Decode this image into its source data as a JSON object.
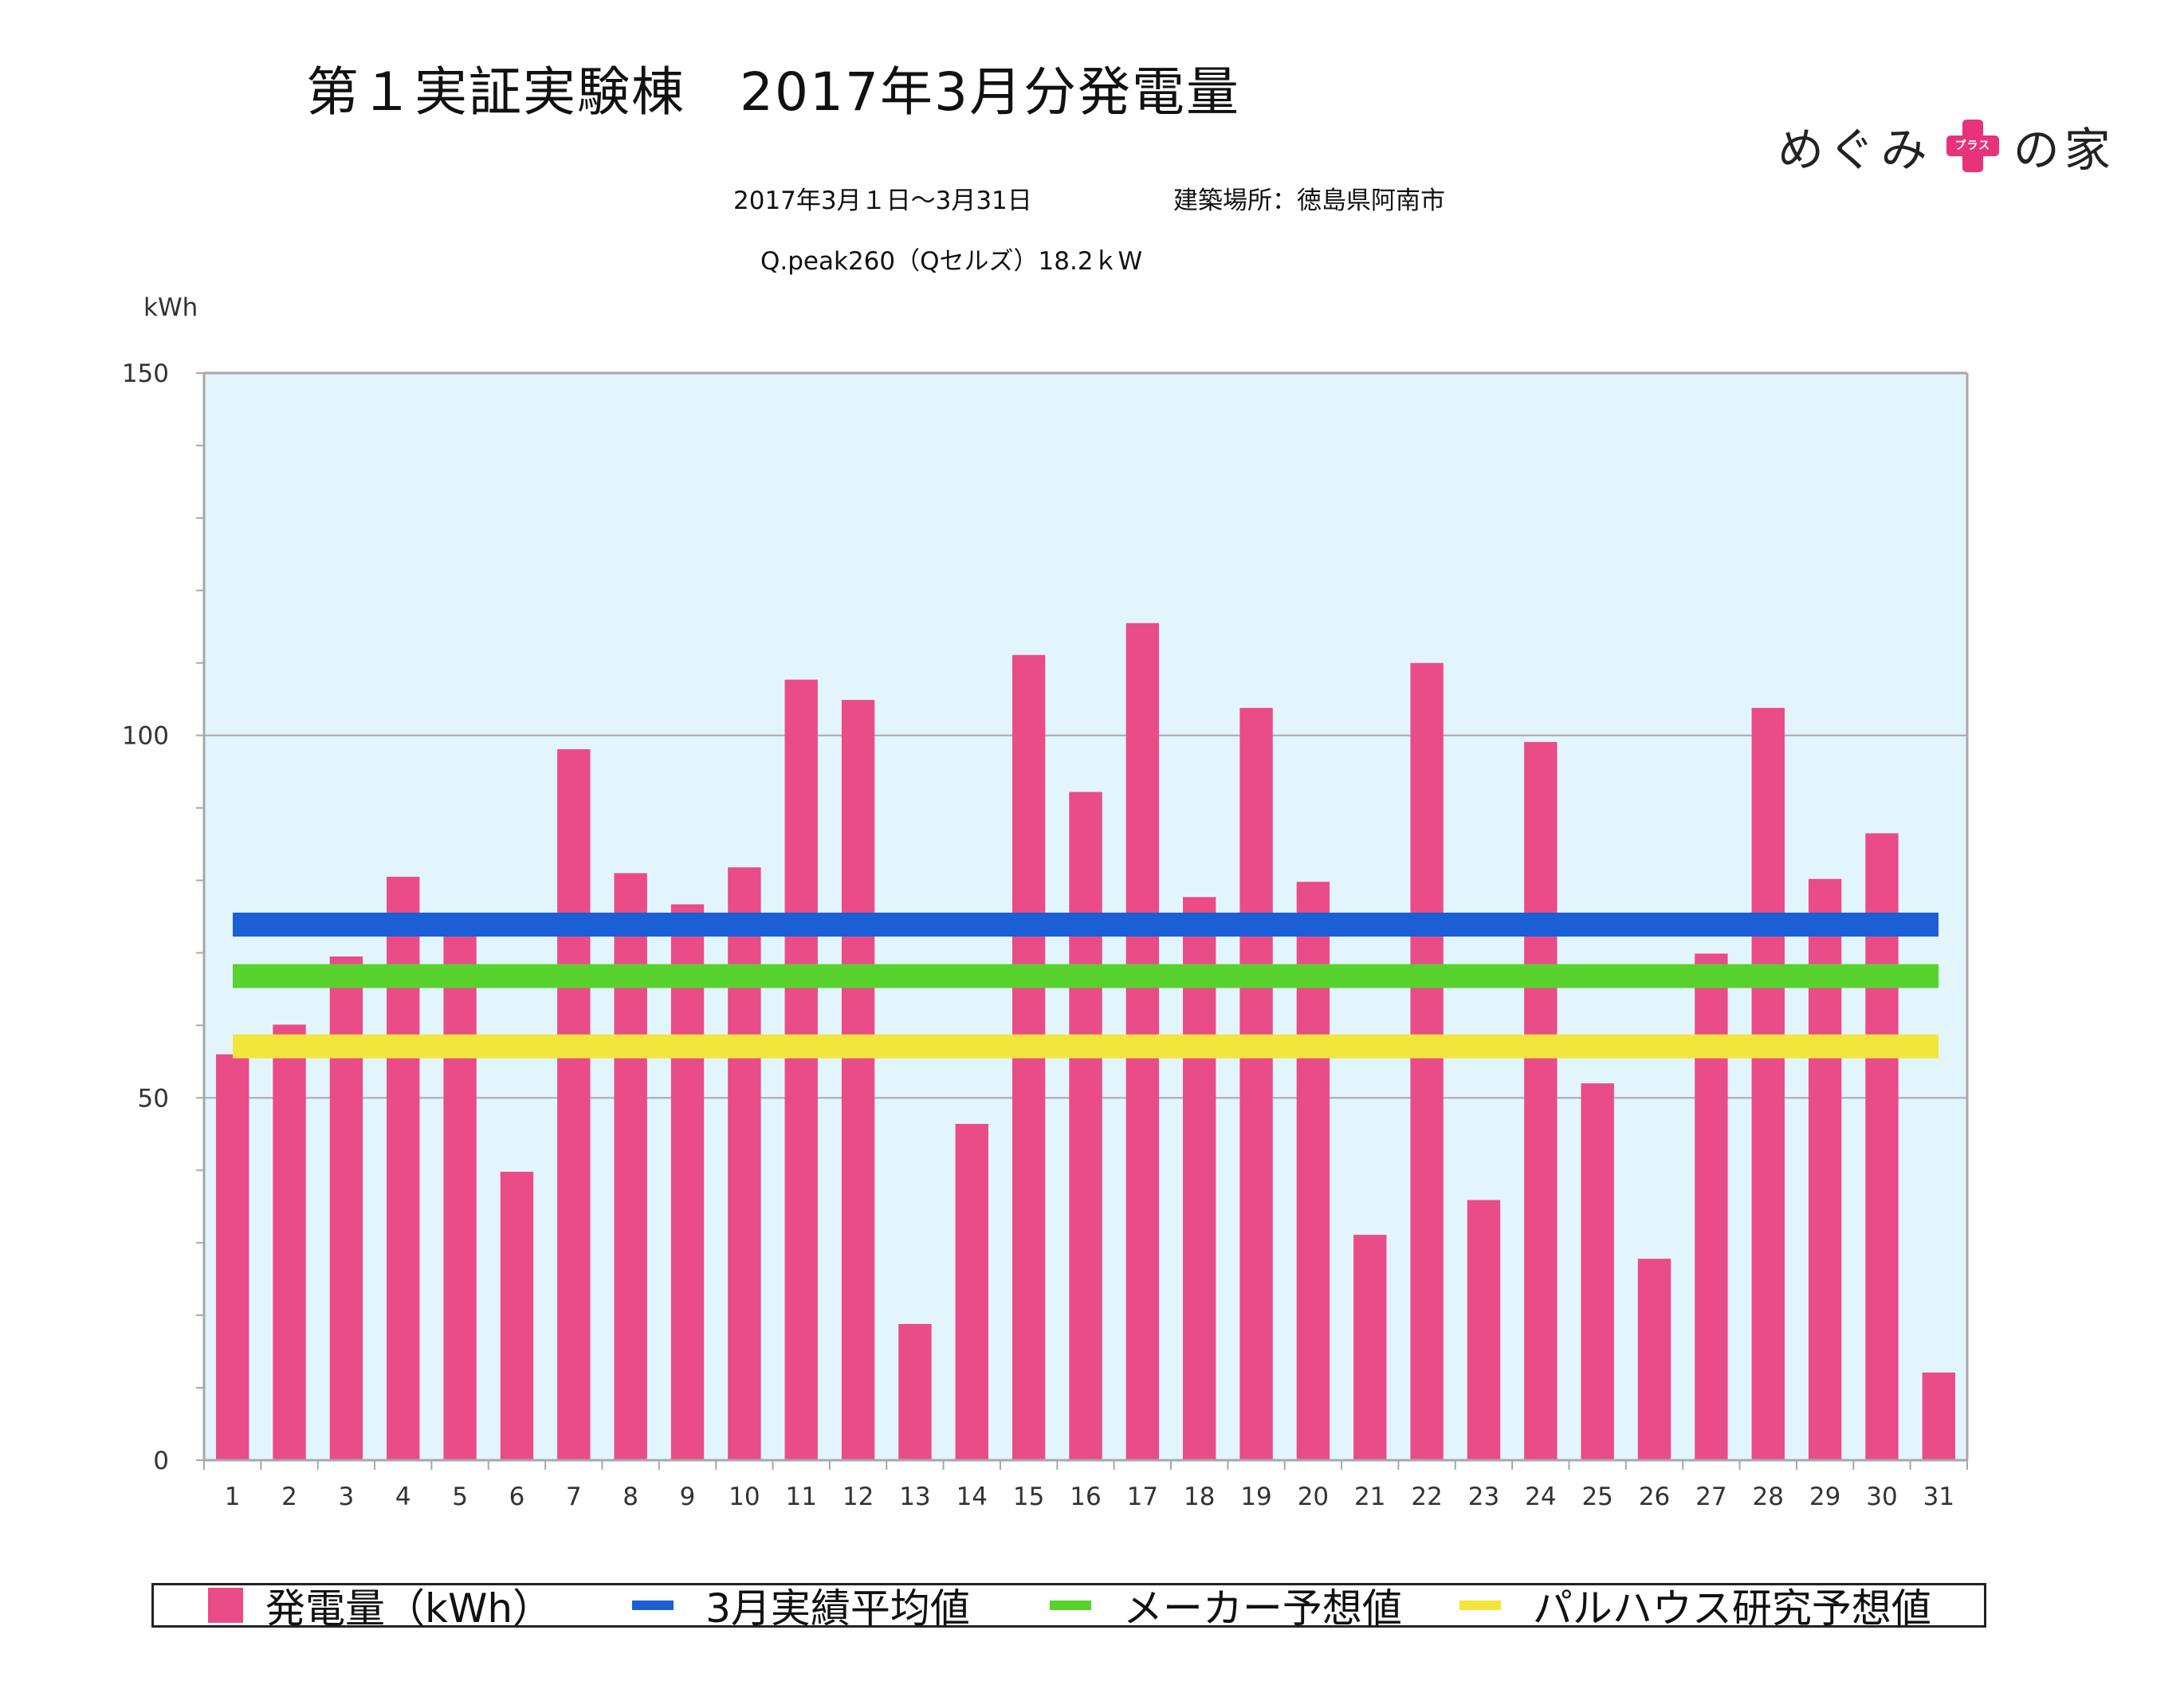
{
  "title": "第１実証実験棟　2017年3月分発電量",
  "subtitle": {
    "period": "2017年3月１日〜3月31日",
    "location": "建築場所：徳島県阿南市",
    "panel": "Q.peak260（Qセルズ）18.2ｋW"
  },
  "logo": {
    "text_left": "めぐみ",
    "plus_small": "プラス",
    "text_right": "の家",
    "color": "#e6337a"
  },
  "colors": {
    "bar": "#ea4c87",
    "plot_bg": "#e3f5fc",
    "grid": "#a8a8a8",
    "actual_avg": "#1a5fd6",
    "maker": "#58d22d",
    "palhouse": "#f2e63b"
  },
  "chart_data": {
    "type": "bar",
    "ylabel": "kWh",
    "ylim": [
      0,
      150
    ],
    "yticks": [
      0,
      50,
      100,
      150
    ],
    "grid": true,
    "legend_position": "bottom",
    "categories": [
      "1",
      "2",
      "3",
      "4",
      "5",
      "6",
      "7",
      "8",
      "9",
      "10",
      "11",
      "12",
      "13",
      "14",
      "15",
      "16",
      "17",
      "18",
      "19",
      "20",
      "21",
      "22",
      "23",
      "24",
      "25",
      "26",
      "27",
      "28",
      "29",
      "30",
      "31"
    ],
    "series": [
      {
        "name": "発電量（kWh）",
        "type": "bar",
        "values": [
          56.0,
          60.1,
          69.5,
          80.5,
          72.8,
          39.8,
          98.1,
          81.0,
          76.7,
          81.8,
          107.7,
          104.9,
          18.8,
          46.4,
          111.1,
          92.2,
          115.5,
          77.7,
          103.8,
          79.8,
          31.1,
          110.0,
          35.9,
          99.1,
          52.0,
          27.8,
          69.9,
          103.8,
          80.2,
          86.5,
          12.1
        ]
      },
      {
        "name": "3月実績平均値",
        "type": "line",
        "value": 73.9
      },
      {
        "name": "メーカー予想値",
        "type": "line",
        "value": 66.8
      },
      {
        "name": "パルハウス研究予想値",
        "type": "line",
        "value": 57.1
      }
    ]
  },
  "legend": [
    {
      "label": "発電量（kWh）",
      "kind": "box",
      "color": "#ea4c87"
    },
    {
      "label": "3月実績平均値",
      "kind": "line",
      "color": "#1a5fd6"
    },
    {
      "label": "メーカー予想値",
      "kind": "line",
      "color": "#58d22d"
    },
    {
      "label": "パルハウス研究予想値",
      "kind": "line",
      "color": "#f2e63b"
    }
  ]
}
